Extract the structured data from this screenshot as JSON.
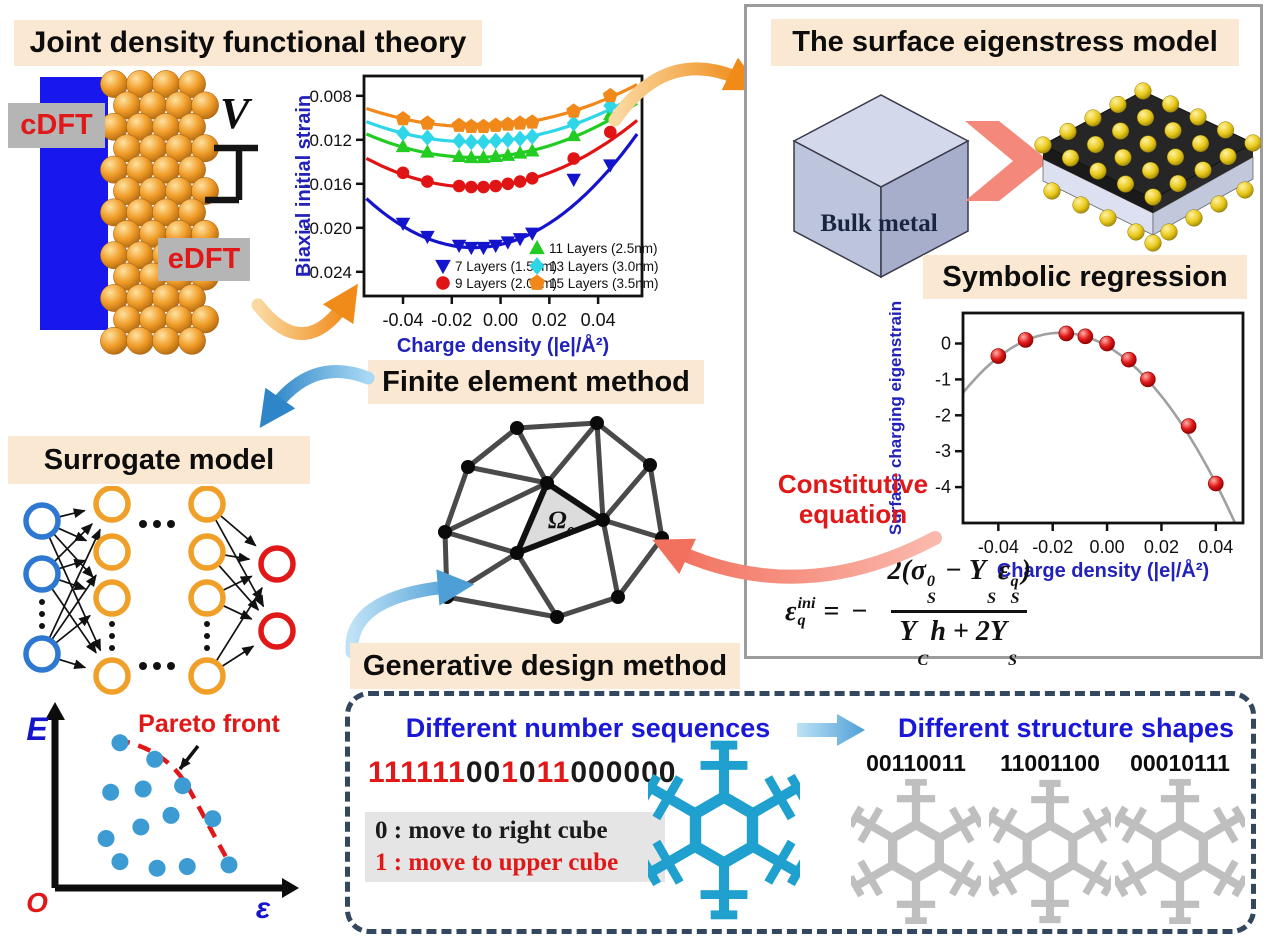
{
  "jdft": {
    "title": "Joint density functional theory",
    "cdft_label": "cDFT",
    "edft_label": "eDFT",
    "voltage_label": "V"
  },
  "eigenstress": {
    "title": "The surface eigenstress model",
    "bulk_label": "Bulk metal"
  },
  "symbolic_title": "Symbolic regression",
  "constitutive": {
    "line1": "Constitutive",
    "line2": "equation"
  },
  "equation": {
    "lhs_base": "ε",
    "lhs_sup": "ini",
    "lhs_sub": "q",
    "equals": "=",
    "minus": "−",
    "num_open": "2(",
    "sigma": "σ",
    "sigma_sup": "0",
    "sigma_sub": "S",
    "num_minus": " − ",
    "y1": "Y",
    "y1_sub": "S",
    "eps2": "ε",
    "eps2_sup": "q",
    "eps2_sub": "S",
    "num_close": ")",
    "den_y": "Y",
    "den_y_sub": "C",
    "den_h": "h",
    "den_plus": " + ",
    "den_coef": "2",
    "den_y2": "Y",
    "den_y2_sub": "S"
  },
  "fem": {
    "title": "Finite element method",
    "omega": "Ω",
    "omega_sub": "e"
  },
  "surrogate_title": "Surrogate model",
  "generative_title": "Generative design method",
  "sequences": {
    "title": "Different number sequences",
    "binary": "111111001011000000",
    "rule0": "0 : move to right cube",
    "rule1": "1 : move to upper cube"
  },
  "shapes": {
    "title": "Different structure shapes",
    "labels": [
      "00110011",
      "11001100",
      "00010111"
    ]
  },
  "colors": {
    "heading_bg": "#FBE8D3",
    "panel_border": "#9C9C9C",
    "dashed_border": "#33475E",
    "blue_heading": "#1A18D8",
    "red_accent": "#E01818",
    "electrode_blue": "#1717EE",
    "arrow_orange": "#F08A18",
    "arrow_blue": "#2E86C8",
    "arrow_salmon": "#F4897B"
  },
  "chart_data": [
    {
      "type": "scatter",
      "title": "",
      "xlabel": "Charge density (|e|/Å²)",
      "ylabel": "Biaxial initial strain",
      "xticks": [
        -0.04,
        -0.02,
        0.0,
        0.02,
        0.04
      ],
      "yticks": [
        -0.008,
        -0.012,
        -0.016,
        -0.02,
        -0.024
      ],
      "xlim": [
        -0.056,
        0.058
      ],
      "ylim": [
        -0.0262,
        -0.0062
      ],
      "legend_position": "inside bottom-right, two columns",
      "series": [
        {
          "name": "7 Layers (1.5nm)",
          "marker": "triangle-down",
          "color": "#1414CC",
          "fit": {
            "vertex_x": -0.011,
            "vertex_y": -0.0218,
            "coeff": 2.3
          },
          "points": [
            [
              -0.04,
              -0.0196
            ],
            [
              -0.03,
              -0.0208
            ],
            [
              -0.017,
              -0.0216
            ],
            [
              -0.012,
              -0.0218
            ],
            [
              -0.007,
              -0.0218
            ],
            [
              -0.002,
              -0.0216
            ],
            [
              0.003,
              -0.0213
            ],
            [
              0.008,
              -0.021
            ],
            [
              0.013,
              -0.0205
            ],
            [
              0.03,
              -0.0156
            ],
            [
              0.045,
              -0.0143
            ]
          ]
        },
        {
          "name": "9 Layers (2.0nm)",
          "marker": "circle",
          "color": "#E01414",
          "fit": {
            "vertex_x": -0.011,
            "vertex_y": -0.0163,
            "coeff": 1.35
          },
          "points": [
            [
              -0.04,
              -0.015
            ],
            [
              -0.03,
              -0.0158
            ],
            [
              -0.017,
              -0.0162
            ],
            [
              -0.012,
              -0.0163
            ],
            [
              -0.007,
              -0.0163
            ],
            [
              -0.002,
              -0.0162
            ],
            [
              0.003,
              -0.016
            ],
            [
              0.008,
              -0.0158
            ],
            [
              0.013,
              -0.0155
            ],
            [
              0.03,
              -0.0137
            ],
            [
              0.045,
              -0.0113
            ]
          ]
        },
        {
          "name": "11 Layers (2.5nm)",
          "marker": "triangle-up",
          "color": "#22CC22",
          "fit": {
            "vertex_x": -0.011,
            "vertex_y": -0.0136,
            "coeff": 1.1
          },
          "points": [
            [
              -0.04,
              -0.0126
            ],
            [
              -0.03,
              -0.0131
            ],
            [
              -0.017,
              -0.0135
            ],
            [
              -0.012,
              -0.0136
            ],
            [
              -0.007,
              -0.0136
            ],
            [
              -0.002,
              -0.0135
            ],
            [
              0.003,
              -0.0134
            ],
            [
              0.008,
              -0.0132
            ],
            [
              0.013,
              -0.013
            ],
            [
              0.03,
              -0.0116
            ],
            [
              0.045,
              -0.0097
            ]
          ]
        },
        {
          "name": "13 Layers (3.0nm)",
          "marker": "diamond",
          "color": "#2ED6E8",
          "fit": {
            "vertex_x": -0.011,
            "vertex_y": -0.0122,
            "coeff": 0.95
          },
          "points": [
            [
              -0.04,
              -0.0114
            ],
            [
              -0.03,
              -0.0118
            ],
            [
              -0.017,
              -0.0121
            ],
            [
              -0.012,
              -0.0122
            ],
            [
              -0.007,
              -0.0122
            ],
            [
              -0.002,
              -0.0121
            ],
            [
              0.003,
              -0.012
            ],
            [
              0.008,
              -0.0119
            ],
            [
              0.013,
              -0.0117
            ],
            [
              0.03,
              -0.0105
            ],
            [
              0.045,
              -0.0089
            ]
          ]
        },
        {
          "name": "15 Layers (3.5nm)",
          "marker": "pentagon",
          "color": "#F0881A",
          "fit": {
            "vertex_x": -0.011,
            "vertex_y": -0.0108,
            "coeff": 0.85
          },
          "points": [
            [
              -0.04,
              -0.0101
            ],
            [
              -0.03,
              -0.0105
            ],
            [
              -0.017,
              -0.0107
            ],
            [
              -0.012,
              -0.0108
            ],
            [
              -0.007,
              -0.0108
            ],
            [
              -0.002,
              -0.0107
            ],
            [
              0.003,
              -0.0106
            ],
            [
              0.008,
              -0.0105
            ],
            [
              0.013,
              -0.0104
            ],
            [
              0.03,
              -0.0094
            ],
            [
              0.045,
              -0.008
            ]
          ]
        }
      ]
    },
    {
      "type": "scatter",
      "title": "",
      "xlabel": "Charge density (|e|/Å²)",
      "ylabel": "Surface charging eigenstrain",
      "xticks": [
        -0.04,
        -0.02,
        0.0,
        0.02,
        0.04
      ],
      "yticks": [
        0,
        -1,
        -2,
        -3,
        -4
      ],
      "xlim": [
        -0.053,
        0.05
      ],
      "ylim": [
        -5.0,
        0.85
      ],
      "point_color": "#E01414",
      "fit": {
        "vertex_x": -0.017,
        "vertex_y": 0.3,
        "coeff": 1290,
        "curve_color": "#A0A0A0"
      },
      "points": [
        [
          -0.04,
          -0.35
        ],
        [
          -0.03,
          0.1
        ],
        [
          -0.015,
          0.28
        ],
        [
          -0.008,
          0.2
        ],
        [
          0,
          0
        ],
        [
          0.008,
          -0.45
        ],
        [
          0.015,
          -1.0
        ],
        [
          0.03,
          -2.3
        ],
        [
          0.04,
          -3.9
        ]
      ]
    },
    {
      "type": "scatter",
      "title": "",
      "xlabel": "ε",
      "ylabel": "E",
      "origin_label": "O",
      "annotation": "Pareto front",
      "point_color": "#3D9BD4",
      "front_points_rel": [
        [
          0.28,
          0.88
        ],
        [
          0.43,
          0.78
        ],
        [
          0.55,
          0.62
        ],
        [
          0.68,
          0.42
        ],
        [
          0.75,
          0.14
        ]
      ],
      "dominated_points_rel": [
        [
          0.24,
          0.58
        ],
        [
          0.38,
          0.6
        ],
        [
          0.22,
          0.3
        ],
        [
          0.37,
          0.37
        ],
        [
          0.5,
          0.44
        ],
        [
          0.28,
          0.16
        ],
        [
          0.44,
          0.12
        ],
        [
          0.57,
          0.13
        ]
      ]
    }
  ]
}
